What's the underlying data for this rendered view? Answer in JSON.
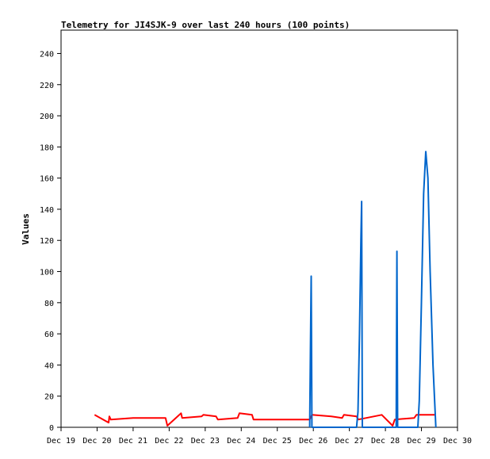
{
  "chart_data": {
    "type": "line",
    "title": "Telemetry for JI4SJK-9 over last 240 hours (100 points)",
    "xlabel": "",
    "ylabel": "Values",
    "x_ticks": [
      "Dec 19",
      "Dec 20",
      "Dec 21",
      "Dec 22",
      "Dec 23",
      "Dec 24",
      "Dec 25",
      "Dec 26",
      "Dec 27",
      "Dec 28",
      "Dec 29",
      "Dec 30"
    ],
    "xlim": [
      0,
      11
    ],
    "ylim": [
      0,
      255
    ],
    "y_ticks": [
      0,
      20,
      40,
      60,
      80,
      100,
      120,
      140,
      160,
      180,
      200,
      220,
      240
    ],
    "grid": false,
    "series": [
      {
        "color": "#ff0000",
        "points": [
          [
            0.93,
            8
          ],
          [
            1.32,
            3
          ],
          [
            1.34,
            7
          ],
          [
            1.38,
            5
          ],
          [
            2.0,
            6
          ],
          [
            2.9,
            6
          ],
          [
            2.95,
            1
          ],
          [
            3.33,
            9
          ],
          [
            3.36,
            6
          ],
          [
            3.9,
            7
          ],
          [
            3.95,
            8
          ],
          [
            4.3,
            7
          ],
          [
            4.35,
            5
          ],
          [
            4.9,
            6
          ],
          [
            4.95,
            9
          ],
          [
            5.3,
            8
          ],
          [
            5.34,
            5
          ],
          [
            6.0,
            5
          ],
          [
            6.9,
            5
          ],
          [
            6.96,
            8
          ],
          [
            7.5,
            7
          ],
          [
            7.8,
            6
          ],
          [
            7.85,
            8
          ],
          [
            8.2,
            7
          ],
          [
            8.25,
            5
          ],
          [
            8.9,
            8
          ],
          [
            9.2,
            1
          ],
          [
            9.26,
            5
          ],
          [
            9.8,
            6
          ],
          [
            9.86,
            8
          ],
          [
            10.4,
            8
          ]
        ]
      },
      {
        "color": "#0066cc",
        "points": [
          [
            6.9,
            0
          ],
          [
            6.92,
            48
          ],
          [
            6.94,
            97
          ],
          [
            6.96,
            0
          ],
          [
            8.2,
            0
          ],
          [
            8.24,
            10
          ],
          [
            8.28,
            60
          ],
          [
            8.32,
            120
          ],
          [
            8.34,
            145
          ],
          [
            8.36,
            0
          ],
          [
            9.3,
            0
          ],
          [
            9.32,
            113
          ],
          [
            9.34,
            0
          ],
          [
            9.9,
            0
          ],
          [
            9.94,
            17
          ],
          [
            10.0,
            80
          ],
          [
            10.06,
            150
          ],
          [
            10.12,
            177
          ],
          [
            10.18,
            160
          ],
          [
            10.24,
            100
          ],
          [
            10.32,
            40
          ],
          [
            10.4,
            0
          ]
        ]
      }
    ]
  }
}
